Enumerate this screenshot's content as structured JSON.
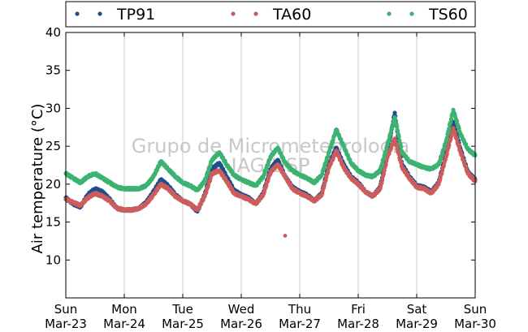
{
  "chart_data": {
    "type": "scatter",
    "title": "",
    "xlabel": "",
    "ylabel": "Air temperature (°C)",
    "ylim": [
      5,
      40
    ],
    "yticks": [
      10,
      15,
      20,
      25,
      30,
      35,
      40
    ],
    "xlim": [
      "Mar-23",
      "Mar-30"
    ],
    "x_tick_labels": [
      {
        "day": "Sun",
        "date": "Mar-23"
      },
      {
        "day": "Mon",
        "date": "Mar-24"
      },
      {
        "day": "Tue",
        "date": "Mar-25"
      },
      {
        "day": "Wed",
        "date": "Mar-26"
      },
      {
        "day": "Thu",
        "date": "Mar-27"
      },
      {
        "day": "Fri",
        "date": "Mar-28"
      },
      {
        "day": "Sat",
        "date": "Mar-29"
      },
      {
        "day": "Sun",
        "date": "Mar-30"
      }
    ],
    "grid": "vertical",
    "legend_position": "top",
    "watermark": [
      "Grupo de Micrometeorologia",
      "IAG/USP"
    ],
    "series": [
      {
        "name": "TP91",
        "color": "#1f4e8c",
        "points": [
          [
            "Mar-23 00:00",
            18.2
          ],
          [
            "Mar-23 03:00",
            17.4
          ],
          [
            "Mar-23 06:00",
            17.0
          ],
          [
            "Mar-23 09:00",
            18.6
          ],
          [
            "Mar-23 12:00",
            19.4
          ],
          [
            "Mar-23 15:00",
            19.0
          ],
          [
            "Mar-23 18:00",
            18.0
          ],
          [
            "Mar-23 21:00",
            16.8
          ],
          [
            "Mar-24 00:00",
            16.6
          ],
          [
            "Mar-24 03:00",
            16.6
          ],
          [
            "Mar-24 06:00",
            16.8
          ],
          [
            "Mar-24 09:00",
            17.6
          ],
          [
            "Mar-24 12:00",
            19.0
          ],
          [
            "Mar-24 15:00",
            20.6
          ],
          [
            "Mar-24 18:00",
            19.8
          ],
          [
            "Mar-24 21:00",
            18.6
          ],
          [
            "Mar-25 00:00",
            17.8
          ],
          [
            "Mar-25 03:00",
            17.4
          ],
          [
            "Mar-25 06:00",
            16.4
          ],
          [
            "Mar-25 09:00",
            18.6
          ],
          [
            "Mar-25 12:00",
            22.0
          ],
          [
            "Mar-25 15:00",
            22.8
          ],
          [
            "Mar-25 18:00",
            21.0
          ],
          [
            "Mar-25 21:00",
            19.2
          ],
          [
            "Mar-26 00:00",
            18.6
          ],
          [
            "Mar-26 03:00",
            18.2
          ],
          [
            "Mar-26 06:00",
            17.4
          ],
          [
            "Mar-26 09:00",
            18.8
          ],
          [
            "Mar-26 12:00",
            22.0
          ],
          [
            "Mar-26 15:00",
            23.2
          ],
          [
            "Mar-26 18:00",
            21.0
          ],
          [
            "Mar-26 21:00",
            19.6
          ],
          [
            "Mar-27 00:00",
            19.0
          ],
          [
            "Mar-27 03:00",
            18.6
          ],
          [
            "Mar-27 06:00",
            17.8
          ],
          [
            "Mar-27 09:00",
            18.8
          ],
          [
            "Mar-27 12:00",
            22.6
          ],
          [
            "Mar-27 15:00",
            24.8
          ],
          [
            "Mar-27 18:00",
            22.6
          ],
          [
            "Mar-27 21:00",
            21.0
          ],
          [
            "Mar-28 00:00",
            20.2
          ],
          [
            "Mar-28 03:00",
            19.0
          ],
          [
            "Mar-28 06:00",
            18.4
          ],
          [
            "Mar-28 09:00",
            19.6
          ],
          [
            "Mar-28 12:00",
            24.2
          ],
          [
            "Mar-28 15:00",
            29.4
          ],
          [
            "Mar-28 18:00",
            22.6
          ],
          [
            "Mar-28 21:00",
            21.0
          ],
          [
            "Mar-29 00:00",
            19.8
          ],
          [
            "Mar-29 03:00",
            19.6
          ],
          [
            "Mar-29 06:00",
            19.0
          ],
          [
            "Mar-29 09:00",
            20.2
          ],
          [
            "Mar-29 12:00",
            24.0
          ],
          [
            "Mar-29 15:00",
            28.2
          ],
          [
            "Mar-29 18:00",
            24.6
          ],
          [
            "Mar-29 21:00",
            21.6
          ],
          [
            "Mar-30 00:00",
            20.6
          ]
        ]
      },
      {
        "name": "TA60",
        "color": "#cd5c5c",
        "points": [
          [
            "Mar-23 00:00",
            18.0
          ],
          [
            "Mar-23 03:00",
            17.6
          ],
          [
            "Mar-23 06:00",
            17.2
          ],
          [
            "Mar-23 09:00",
            18.2
          ],
          [
            "Mar-23 12:00",
            18.8
          ],
          [
            "Mar-23 15:00",
            18.4
          ],
          [
            "Mar-23 18:00",
            17.8
          ],
          [
            "Mar-23 21:00",
            16.8
          ],
          [
            "Mar-24 00:00",
            16.6
          ],
          [
            "Mar-24 03:00",
            16.6
          ],
          [
            "Mar-24 06:00",
            16.8
          ],
          [
            "Mar-24 09:00",
            17.4
          ],
          [
            "Mar-24 12:00",
            18.6
          ],
          [
            "Mar-24 15:00",
            20.0
          ],
          [
            "Mar-24 18:00",
            19.4
          ],
          [
            "Mar-24 21:00",
            18.4
          ],
          [
            "Mar-25 00:00",
            17.8
          ],
          [
            "Mar-25 03:00",
            17.4
          ],
          [
            "Mar-25 06:00",
            16.6
          ],
          [
            "Mar-25 09:00",
            18.4
          ],
          [
            "Mar-25 12:00",
            21.4
          ],
          [
            "Mar-25 15:00",
            21.8
          ],
          [
            "Mar-25 18:00",
            20.4
          ],
          [
            "Mar-25 21:00",
            18.8
          ],
          [
            "Mar-26 00:00",
            18.4
          ],
          [
            "Mar-26 03:00",
            18.0
          ],
          [
            "Mar-26 06:00",
            17.4
          ],
          [
            "Mar-26 09:00",
            18.6
          ],
          [
            "Mar-26 12:00",
            21.6
          ],
          [
            "Mar-26 15:00",
            22.6
          ],
          [
            "Mar-26 18:00",
            13.2
          ],
          [
            "Mar-26 21:00",
            19.4
          ],
          [
            "Mar-27 00:00",
            18.8
          ],
          [
            "Mar-27 03:00",
            18.4
          ],
          [
            "Mar-27 06:00",
            17.8
          ],
          [
            "Mar-27 09:00",
            18.6
          ],
          [
            "Mar-27 12:00",
            22.2
          ],
          [
            "Mar-27 15:00",
            24.4
          ],
          [
            "Mar-27 18:00",
            22.2
          ],
          [
            "Mar-27 21:00",
            20.8
          ],
          [
            "Mar-28 00:00",
            20.0
          ],
          [
            "Mar-28 03:00",
            19.0
          ],
          [
            "Mar-28 06:00",
            18.4
          ],
          [
            "Mar-28 09:00",
            19.4
          ],
          [
            "Mar-28 12:00",
            23.6
          ],
          [
            "Mar-28 15:00",
            26.0
          ],
          [
            "Mar-28 18:00",
            22.2
          ],
          [
            "Mar-28 21:00",
            20.8
          ],
          [
            "Mar-29 00:00",
            19.6
          ],
          [
            "Mar-29 03:00",
            19.4
          ],
          [
            "Mar-29 06:00",
            18.8
          ],
          [
            "Mar-29 09:00",
            20.0
          ],
          [
            "Mar-29 12:00",
            23.6
          ],
          [
            "Mar-29 15:00",
            27.4
          ],
          [
            "Mar-29 18:00",
            24.2
          ],
          [
            "Mar-29 21:00",
            21.4
          ],
          [
            "Mar-30 00:00",
            20.4
          ]
        ]
      },
      {
        "name": "TS60",
        "color": "#3cb371",
        "points": [
          [
            "Mar-23 00:00",
            21.4
          ],
          [
            "Mar-23 03:00",
            20.8
          ],
          [
            "Mar-23 06:00",
            20.2
          ],
          [
            "Mar-23 09:00",
            21.0
          ],
          [
            "Mar-23 12:00",
            21.4
          ],
          [
            "Mar-23 15:00",
            20.8
          ],
          [
            "Mar-23 18:00",
            20.2
          ],
          [
            "Mar-23 21:00",
            19.6
          ],
          [
            "Mar-24 00:00",
            19.4
          ],
          [
            "Mar-24 03:00",
            19.4
          ],
          [
            "Mar-24 06:00",
            19.4
          ],
          [
            "Mar-24 09:00",
            19.8
          ],
          [
            "Mar-24 12:00",
            21.0
          ],
          [
            "Mar-24 15:00",
            23.0
          ],
          [
            "Mar-24 18:00",
            22.0
          ],
          [
            "Mar-24 21:00",
            21.0
          ],
          [
            "Mar-25 00:00",
            20.2
          ],
          [
            "Mar-25 03:00",
            19.8
          ],
          [
            "Mar-25 06:00",
            19.2
          ],
          [
            "Mar-25 09:00",
            20.4
          ],
          [
            "Mar-25 12:00",
            23.2
          ],
          [
            "Mar-25 15:00",
            24.2
          ],
          [
            "Mar-25 18:00",
            22.6
          ],
          [
            "Mar-25 21:00",
            21.2
          ],
          [
            "Mar-26 00:00",
            20.6
          ],
          [
            "Mar-26 03:00",
            20.2
          ],
          [
            "Mar-26 06:00",
            19.8
          ],
          [
            "Mar-26 09:00",
            21.0
          ],
          [
            "Mar-26 12:00",
            23.6
          ],
          [
            "Mar-26 15:00",
            24.8
          ],
          [
            "Mar-26 18:00",
            22.8
          ],
          [
            "Mar-26 21:00",
            21.8
          ],
          [
            "Mar-27 00:00",
            21.2
          ],
          [
            "Mar-27 03:00",
            20.8
          ],
          [
            "Mar-27 06:00",
            20.2
          ],
          [
            "Mar-27 09:00",
            21.2
          ],
          [
            "Mar-27 12:00",
            24.2
          ],
          [
            "Mar-27 15:00",
            27.2
          ],
          [
            "Mar-27 18:00",
            25.0
          ],
          [
            "Mar-27 21:00",
            22.8
          ],
          [
            "Mar-28 00:00",
            21.8
          ],
          [
            "Mar-28 03:00",
            21.2
          ],
          [
            "Mar-28 06:00",
            21.0
          ],
          [
            "Mar-28 09:00",
            21.8
          ],
          [
            "Mar-28 12:00",
            25.2
          ],
          [
            "Mar-28 15:00",
            28.8
          ],
          [
            "Mar-28 18:00",
            24.2
          ],
          [
            "Mar-28 21:00",
            23.0
          ],
          [
            "Mar-29 00:00",
            22.6
          ],
          [
            "Mar-29 03:00",
            22.2
          ],
          [
            "Mar-29 06:00",
            22.0
          ],
          [
            "Mar-29 09:00",
            22.6
          ],
          [
            "Mar-29 12:00",
            25.6
          ],
          [
            "Mar-29 15:00",
            29.8
          ],
          [
            "Mar-29 18:00",
            26.6
          ],
          [
            "Mar-29 21:00",
            24.6
          ],
          [
            "Mar-30 00:00",
            23.8
          ]
        ]
      }
    ]
  }
}
